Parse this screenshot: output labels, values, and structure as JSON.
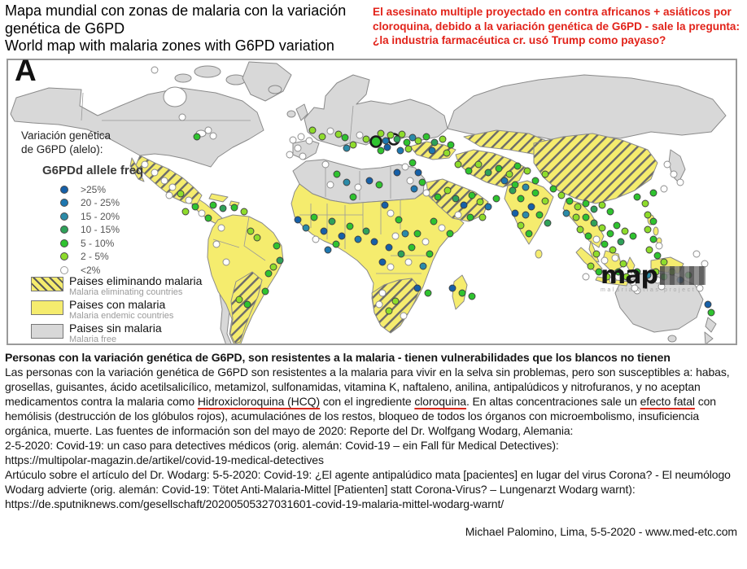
{
  "header": {
    "title_es": "Mapa mundial con zonas de malaria con la variación genética de G6PD",
    "title_en": "World map with malaria zones with G6PD variation",
    "red_note": "El asesinato multiple proyectado en contra africanos + asiáticos por cloroquina, debido a la variación genética de G6PD - sale la pregunta: ¿la industria farmacéutica cr. usó Trump como payaso?"
  },
  "map": {
    "panel_label": "A",
    "legend": {
      "title_line1": "Variación genética",
      "title_line2": "de G6PD (alelo):",
      "allele_title": "G6PDd allele freq",
      "allele_classes": [
        {
          "label": ">25%",
          "color": "#1660a8"
        },
        {
          "label": "20 - 25%",
          "color": "#1e77b0"
        },
        {
          "label": "15 - 20%",
          "color": "#2b8ba8"
        },
        {
          "label": "10 - 15%",
          "color": "#2fa159"
        },
        {
          "label": "5 - 10%",
          "color": "#2fc32f"
        },
        {
          "label": "2 - 5%",
          "color": "#8edc2c"
        },
        {
          "label": "<2%",
          "color": "#ffffff"
        }
      ],
      "zones": [
        {
          "label_es": "Paises eliminando malaria",
          "label_en": "Malaria eliminating countries",
          "style": "eliminating"
        },
        {
          "label_es": "Paises con malaria",
          "label_en": "Malaria endemic countries",
          "style": "endemic"
        },
        {
          "label_es": "Paises sin malaria",
          "label_en": "Malaria free",
          "style": "free"
        }
      ]
    },
    "watermark": {
      "text": "map",
      "subtext": "malaria atlas project"
    },
    "colors": {
      "endemic_yellow": "#f5ec6e",
      "malaria_free_gray": "#d8d8d8",
      "border_gray": "#8a8a8a"
    },
    "dots": [
      [
        180,
        12,
        6
      ],
      [
        214,
        70,
        6
      ],
      [
        246,
        86,
        6
      ],
      [
        232,
        94,
        4
      ],
      [
        252,
        93,
        6
      ],
      [
        168,
        128,
        6
      ],
      [
        180,
        138,
        6
      ],
      [
        192,
        148,
        6
      ],
      [
        202,
        156,
        6
      ],
      [
        212,
        164,
        5
      ],
      [
        222,
        172,
        6
      ],
      [
        230,
        180,
        4
      ],
      [
        238,
        188,
        6
      ],
      [
        246,
        194,
        4
      ],
      [
        218,
        186,
        5
      ],
      [
        198,
        166,
        6
      ],
      [
        252,
        178,
        4
      ],
      [
        264,
        182,
        3
      ],
      [
        278,
        181,
        4
      ],
      [
        290,
        186,
        5
      ],
      [
        262,
        206,
        6
      ],
      [
        298,
        210,
        5
      ],
      [
        330,
        228,
        4
      ],
      [
        334,
        246,
        3
      ],
      [
        326,
        254,
        5
      ],
      [
        320,
        262,
        4
      ],
      [
        316,
        284,
        4
      ],
      [
        256,
        226,
        6
      ],
      [
        268,
        248,
        6
      ],
      [
        284,
        294,
        5
      ],
      [
        294,
        300,
        4
      ],
      [
        306,
        218,
        5
      ],
      [
        350,
        98,
        6
      ],
      [
        360,
        94,
        6
      ],
      [
        370,
        99,
        6
      ],
      [
        356,
        108,
        6
      ],
      [
        346,
        116,
        6
      ],
      [
        374,
        86,
        5
      ],
      [
        362,
        118,
        6
      ],
      [
        386,
        94,
        5
      ],
      [
        396,
        87,
        6
      ],
      [
        406,
        91,
        5
      ],
      [
        414,
        95,
        4
      ],
      [
        432,
        92,
        6
      ],
      [
        440,
        97,
        5
      ],
      [
        452,
        100,
        4,
        1
      ],
      [
        474,
        97,
        6,
        1
      ],
      [
        424,
        104,
        5
      ],
      [
        416,
        108,
        2
      ],
      [
        458,
        90,
        5
      ],
      [
        464,
        99,
        1
      ],
      [
        470,
        92,
        5
      ],
      [
        478,
        97,
        3
      ],
      [
        484,
        91,
        5
      ],
      [
        490,
        101,
        4
      ],
      [
        497,
        95,
        2
      ],
      [
        466,
        107,
        0
      ],
      [
        458,
        111,
        4
      ],
      [
        482,
        111,
        1
      ],
      [
        492,
        109,
        5
      ],
      [
        504,
        99,
        5
      ],
      [
        514,
        94,
        4
      ],
      [
        524,
        101,
        3
      ],
      [
        534,
        97,
        5
      ],
      [
        544,
        104,
        4
      ],
      [
        521,
        111,
        1
      ],
      [
        539,
        114,
        5
      ],
      [
        390,
        128,
        6
      ],
      [
        404,
        140,
        4
      ],
      [
        416,
        150,
        2
      ],
      [
        430,
        156,
        6
      ],
      [
        444,
        148,
        0
      ],
      [
        456,
        153,
        4
      ],
      [
        396,
        153,
        6
      ],
      [
        424,
        168,
        4
      ],
      [
        478,
        138,
        0
      ],
      [
        488,
        131,
        6
      ],
      [
        497,
        126,
        4
      ],
      [
        504,
        138,
        0
      ],
      [
        494,
        148,
        6
      ],
      [
        509,
        150,
        4
      ],
      [
        499,
        158,
        1
      ],
      [
        514,
        163,
        6
      ],
      [
        528,
        168,
        4
      ],
      [
        540,
        160,
        5
      ],
      [
        550,
        170,
        3
      ],
      [
        560,
        178,
        0
      ],
      [
        570,
        166,
        4
      ],
      [
        580,
        174,
        5
      ],
      [
        590,
        180,
        1
      ],
      [
        600,
        170,
        4
      ],
      [
        553,
        190,
        6
      ],
      [
        568,
        193,
        4
      ],
      [
        583,
        193,
        5
      ],
      [
        553,
        128,
        5
      ],
      [
        566,
        136,
        4
      ],
      [
        578,
        128,
        5
      ],
      [
        590,
        138,
        3
      ],
      [
        603,
        133,
        4
      ],
      [
        616,
        140,
        5
      ],
      [
        626,
        130,
        4
      ],
      [
        638,
        136,
        5
      ],
      [
        610,
        148,
        1
      ],
      [
        623,
        153,
        4
      ],
      [
        636,
        156,
        2
      ],
      [
        648,
        148,
        4
      ],
      [
        660,
        140,
        5
      ],
      [
        356,
        196,
        0
      ],
      [
        366,
        206,
        2
      ],
      [
        376,
        193,
        4
      ],
      [
        388,
        210,
        0
      ],
      [
        398,
        198,
        3
      ],
      [
        410,
        216,
        0
      ],
      [
        420,
        204,
        4
      ],
      [
        430,
        220,
        1
      ],
      [
        440,
        210,
        3
      ],
      [
        450,
        223,
        0
      ],
      [
        403,
        226,
        4
      ],
      [
        378,
        220,
        6
      ],
      [
        393,
        233,
        1
      ],
      [
        463,
        178,
        0
      ],
      [
        470,
        188,
        6
      ],
      [
        480,
        196,
        4
      ],
      [
        468,
        230,
        0
      ],
      [
        483,
        238,
        3
      ],
      [
        460,
        248,
        0
      ],
      [
        470,
        254,
        6
      ],
      [
        496,
        230,
        4
      ],
      [
        492,
        248,
        6
      ],
      [
        503,
        213,
        4
      ],
      [
        513,
        223,
        6
      ],
      [
        518,
        238,
        4
      ],
      [
        510,
        253,
        2
      ],
      [
        488,
        213,
        2
      ],
      [
        476,
        216,
        6
      ],
      [
        523,
        198,
        4
      ],
      [
        533,
        206,
        6
      ],
      [
        543,
        213,
        4
      ],
      [
        460,
        286,
        6
      ],
      [
        476,
        296,
        5
      ],
      [
        503,
        280,
        0
      ],
      [
        516,
        286,
        4
      ],
      [
        456,
        300,
        6
      ],
      [
        468,
        308,
        5
      ],
      [
        486,
        314,
        6
      ],
      [
        546,
        280,
        0
      ],
      [
        558,
        286,
        4
      ],
      [
        570,
        290,
        4
      ],
      [
        620,
        160,
        3
      ],
      [
        630,
        170,
        4
      ],
      [
        643,
        180,
        0
      ],
      [
        653,
        190,
        4
      ],
      [
        630,
        203,
        5
      ],
      [
        640,
        213,
        4
      ],
      [
        663,
        200,
        3
      ],
      [
        623,
        188,
        0
      ],
      [
        648,
        163,
        4
      ],
      [
        660,
        173,
        5
      ],
      [
        636,
        190,
        2
      ],
      [
        670,
        158,
        4
      ],
      [
        680,
        166,
        5
      ],
      [
        690,
        173,
        4
      ],
      [
        700,
        180,
        5
      ],
      [
        710,
        176,
        4
      ],
      [
        720,
        183,
        3
      ],
      [
        730,
        178,
        5
      ],
      [
        740,
        186,
        4
      ],
      [
        686,
        188,
        2
      ],
      [
        698,
        193,
        5
      ],
      [
        710,
        193,
        4
      ],
      [
        720,
        200,
        3
      ],
      [
        730,
        206,
        5
      ],
      [
        740,
        213,
        4
      ],
      [
        723,
        220,
        6
      ],
      [
        733,
        226,
        4
      ],
      [
        743,
        233,
        5
      ],
      [
        753,
        223,
        3
      ],
      [
        703,
        208,
        5
      ],
      [
        713,
        216,
        4
      ],
      [
        748,
        203,
        4
      ],
      [
        758,
        210,
        5
      ],
      [
        768,
        216,
        4
      ],
      [
        746,
        243,
        6
      ],
      [
        756,
        250,
        5
      ],
      [
        733,
        246,
        6
      ],
      [
        723,
        238,
        5
      ],
      [
        773,
        168,
        4
      ],
      [
        783,
        176,
        5
      ],
      [
        793,
        163,
        4
      ],
      [
        786,
        190,
        5
      ],
      [
        793,
        198,
        4
      ],
      [
        786,
        208,
        5
      ],
      [
        793,
        220,
        4
      ],
      [
        800,
        228,
        6
      ],
      [
        788,
        233,
        5
      ],
      [
        798,
        240,
        4
      ],
      [
        806,
        248,
        5
      ],
      [
        810,
        128,
        6
      ],
      [
        818,
        140,
        6
      ],
      [
        826,
        150,
        6
      ],
      [
        806,
        158,
        6
      ],
      [
        716,
        253,
        5
      ],
      [
        726,
        260,
        4
      ],
      [
        736,
        266,
        5
      ],
      [
        750,
        260,
        4
      ],
      [
        760,
        266,
        5
      ],
      [
        773,
        260,
        4
      ],
      [
        786,
        264,
        2
      ],
      [
        796,
        260,
        5
      ],
      [
        806,
        266,
        4
      ],
      [
        816,
        260,
        5
      ],
      [
        826,
        270,
        0
      ],
      [
        836,
        264,
        4
      ],
      [
        768,
        273,
        6
      ],
      [
        743,
        270,
        6
      ],
      [
        710,
        266,
        6
      ],
      [
        846,
        238,
        6
      ],
      [
        856,
        250,
        6
      ],
      [
        850,
        280,
        6
      ],
      [
        803,
        278,
        6
      ],
      [
        773,
        283,
        6
      ],
      [
        860,
        300,
        0
      ],
      [
        864,
        310,
        4
      ],
      [
        770,
        280,
        6
      ],
      [
        798,
        270,
        6
      ]
    ]
  },
  "body": {
    "heading": "Personas con la variación genética de G6PD, son resistentes a la malaria - tienen vulnerabilidades que los blancos no tienen",
    "paragraph_segments": [
      {
        "text": "Las personas con la variación genética de G6PD son resistentes a la malaria para vivir en la selva sin problemas, pero son susceptibles a: habas, grosellas, guisantes, ácido acetilsalicílico, metamizol, sulfonamidas, vitamina K, naftaleno, anilina, antipalúdicos y nitrofuranos, y no aceptan medicamentos contra la malaria como ",
        "u": false
      },
      {
        "text": "Hidroxicloroquina (HCQ)",
        "u": true
      },
      {
        "text": " con el ingrediente ",
        "u": false
      },
      {
        "text": "cloroquina",
        "u": true
      },
      {
        "text": ". En altas concentraciones sale un ",
        "u": false
      },
      {
        "text": "efecto fatal",
        "u": true
      },
      {
        "text": " con hemólisis (destrucción de los glóbulos rojos), acumulaciónes de los restos, bloqueo de todos los órganos con microembolismo, insuficiencia orgánica, muerte. Las fuentes de información son del mayo de 2020: Reporte del Dr. Wolfgang Wodarg, Alemania:",
        "u": false
      }
    ],
    "source_lines": [
      "2-5-2020: Covid-19: un caso para detectives médicos (orig. alemán: Covid-19 – ein Fall für Medical Detectives):",
      "https://multipolar-magazin.de/artikel/covid-19-medical-detectives",
      "Artúculo sobre el artículo del Dr. Wodarg: 5-5-2020: Covid-19: ¿El agente antipalúdico mata [pacientes] en lugar del virus Corona? - El neumólogo Wodarg advierte (orig. alemán: Covid-19: Tötet Anti-Malaria-Mittel [Patienten] statt Corona-Virus? – Lungenarzt Wodarg warnt): https://de.sputniknews.com/gesellschaft/20200505327031601-covid-19-malaria-mittel-wodarg-warnt/"
    ],
    "footer": "Michael Palomino, Lima, 5-5-2020 - www.med-etc.com"
  }
}
